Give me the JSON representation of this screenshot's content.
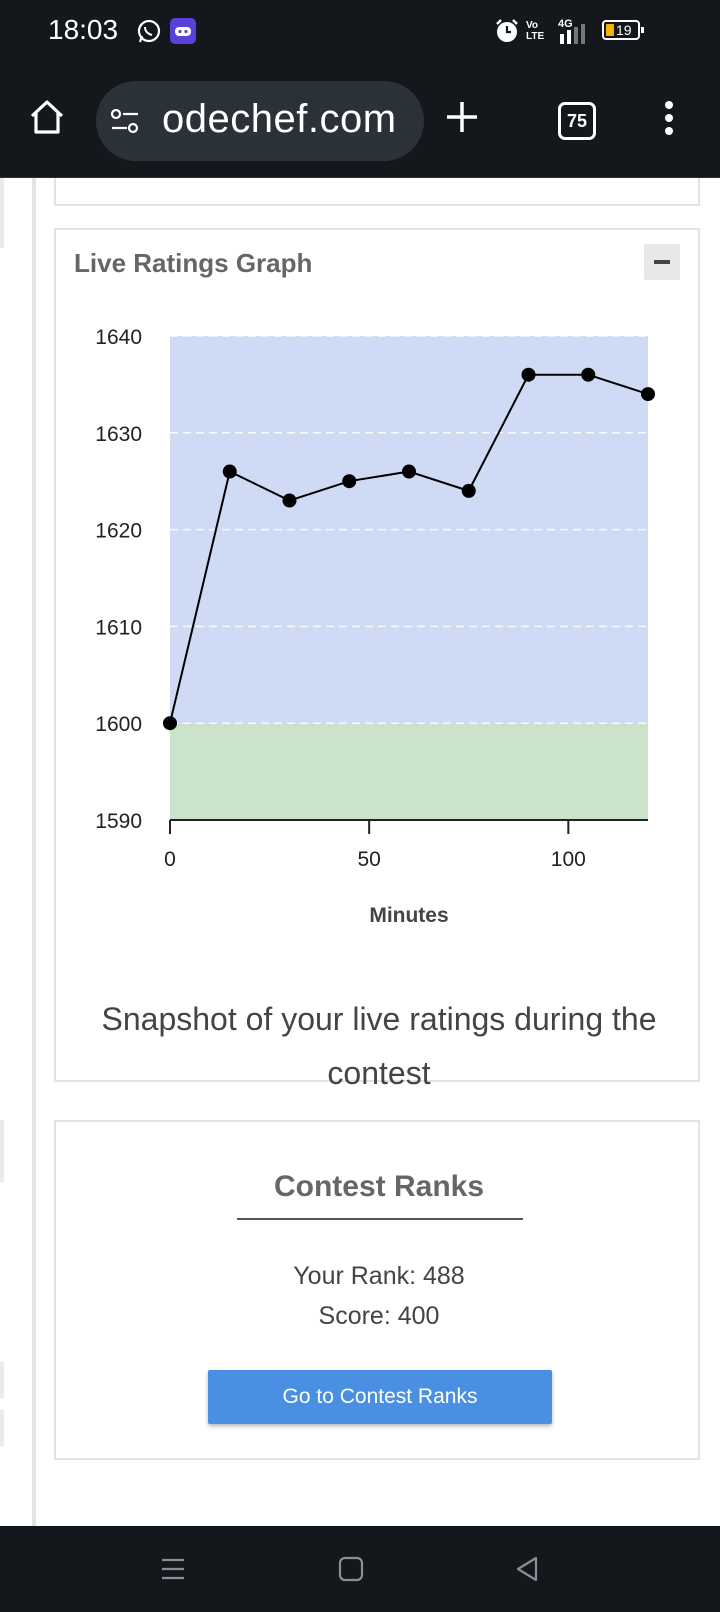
{
  "status_bar": {
    "time": "18:03",
    "battery": "19",
    "network": "4G",
    "volte": "Vo LTE"
  },
  "browser": {
    "url_display": "odechef.com",
    "tab_count": "75"
  },
  "ratings_card": {
    "title": "Live Ratings Graph",
    "caption": "Snapshot of your live ratings during the contest"
  },
  "chart_data": {
    "type": "line",
    "xlabel": "Minutes",
    "ylabel": "",
    "x": [
      0,
      15,
      30,
      45,
      60,
      75,
      90,
      105,
      120
    ],
    "y": [
      1600,
      1626,
      1623,
      1625,
      1626,
      1624,
      1636,
      1636,
      1634
    ],
    "xlim": [
      0,
      120
    ],
    "ylim": [
      1590,
      1640
    ],
    "x_ticks": [
      0,
      50,
      100
    ],
    "y_ticks": [
      1590,
      1600,
      1610,
      1620,
      1630,
      1640
    ],
    "grid": "horizontal dashed",
    "bands": [
      {
        "from": 1590,
        "to": 1600,
        "color": "#cbe3cb"
      },
      {
        "from": 1600,
        "to": 1640,
        "color": "#cfdaf4"
      }
    ],
    "line_color": "#000000"
  },
  "ranks_card": {
    "title": "Contest Ranks",
    "rank_label": "Your Rank: 488",
    "score_label": "Score: 400",
    "button_label": "Go to Contest Ranks"
  },
  "colors": {
    "accent": "#4a90e2",
    "bar_bg": "#14181c"
  }
}
